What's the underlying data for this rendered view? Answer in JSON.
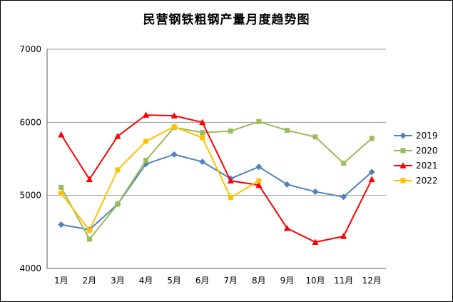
{
  "chart_data": {
    "type": "line",
    "title": "民营钢铁粗钢产量月度趋势图",
    "xlabel": "",
    "ylabel": "",
    "categories": [
      "1月",
      "2月",
      "3月",
      "4月",
      "5月",
      "6月",
      "7月",
      "8月",
      "9月",
      "10月",
      "11月",
      "12月"
    ],
    "series": [
      {
        "name": "2019",
        "color": "#4F81BD",
        "marker": "diamond",
        "values": [
          4600,
          4530,
          4880,
          5430,
          5560,
          5460,
          5230,
          5390,
          5150,
          5050,
          4980,
          5320
        ]
      },
      {
        "name": "2020",
        "color": "#9BBB59",
        "marker": "square",
        "values": [
          5110,
          4400,
          4880,
          5480,
          5930,
          5860,
          5880,
          6010,
          5890,
          5800,
          5440,
          5780
        ]
      },
      {
        "name": "2021",
        "color": "#FF0000",
        "marker": "triangle",
        "values": [
          5830,
          5220,
          5810,
          6100,
          6090,
          6000,
          5200,
          5140,
          4550,
          4360,
          4440,
          5220
        ]
      },
      {
        "name": "2022",
        "color": "#FFC000",
        "marker": "square",
        "values": [
          5030,
          4520,
          5350,
          5740,
          5940,
          5790,
          4970,
          5200,
          null,
          null,
          null,
          null
        ]
      }
    ],
    "ylim": [
      4000,
      7000
    ],
    "yticks": [
      4000,
      5000,
      6000,
      7000
    ],
    "grid": true,
    "legend_position": "right",
    "gridline_color": "#9b9b9b",
    "axis_color": "#595959"
  }
}
